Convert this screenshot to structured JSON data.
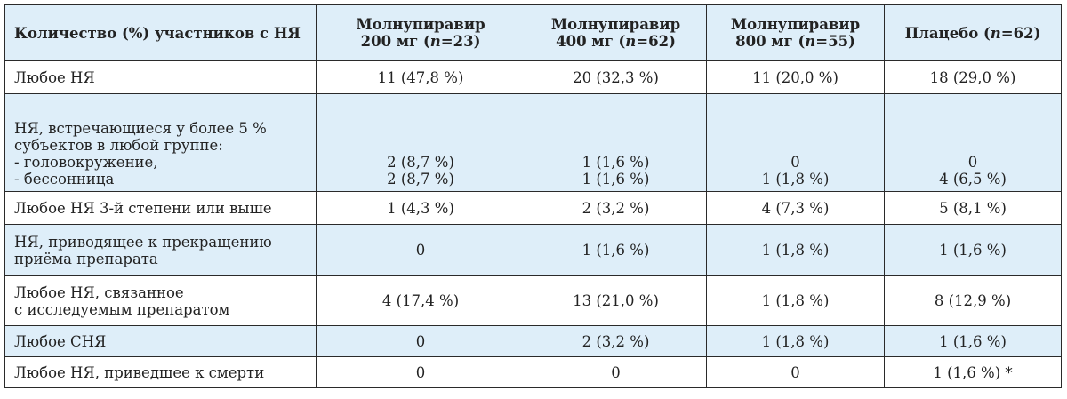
{
  "table": {
    "header": {
      "c0": "Количество (%) участников с НЯ",
      "c1_line1": "Молнупиравир",
      "c1_line2": "200 мг (n=23)",
      "c2_line1": "Молнупиравир",
      "c2_line2": "400 мг (n=62)",
      "c3_line1": "Молнупиравир",
      "c3_line2": "800 мг (n=55)",
      "c4": "Плацебо (n=62)"
    },
    "row_any": {
      "label": "Любое НЯ",
      "v1": "11 (47,8 %)",
      "v2": "20 (32,3 %)",
      "v3": "11 (20,0 %)",
      "v4": "18 (29,0 %)"
    },
    "row_common": {
      "label_1": "НЯ, встречающиеся у более 5 %",
      "label_2": "субъектов в любой группе:",
      "label_3": "- головокружение,",
      "label_4": "- бессонница",
      "c1_a": "2 (8,7 %)",
      "c1_b": "2 (8,7 %)",
      "c2_a": "1 (1,6 %)",
      "c2_b": "1 (1,6 %)",
      "c3_a": "0",
      "c3_b": "1 (1,8 %)",
      "c4_a": "0",
      "c4_b": "4 (6,5 %)"
    },
    "row_grade3": {
      "label": "Любое НЯ 3-й степени или выше",
      "v1": "1 (4,3 %)",
      "v2": "2 (3,2 %)",
      "v3": "4 (7,3 %)",
      "v4": "5 (8,1 %)"
    },
    "row_discont": {
      "label_1": "НЯ, приводящее к прекращению",
      "label_2": "приёма препарата",
      "v1": "0",
      "v2": "1 (1,6 %)",
      "v3": "1 (1,8 %)",
      "v4": "1 (1,6 %)"
    },
    "row_related": {
      "label_1": "Любое НЯ, связанное",
      "label_2": "с исследуемым препаратом",
      "v1": "4 (17,4 %)",
      "v2": "13 (21,0 %)",
      "v3": "1 (1,8 %)",
      "v4": "8 (12,9 %)"
    },
    "row_sae": {
      "label": "Любое СНЯ",
      "v1": "0",
      "v2": "2 (3,2 %)",
      "v3": "1 (1,8 %)",
      "v4": "1 (1,6 %)"
    },
    "row_death": {
      "label": "Любое НЯ, приведшее к смерти",
      "v1": "0",
      "v2": "0",
      "v3": "0",
      "v4": "1 (1,6 %) *"
    }
  }
}
